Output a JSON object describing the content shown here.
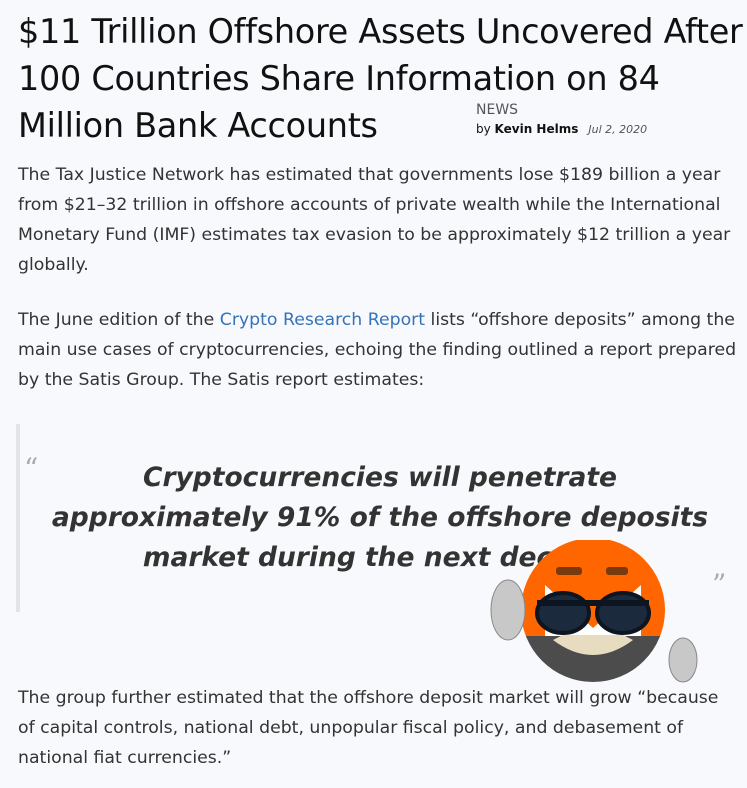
{
  "article": {
    "title": "$11 Trillion Offshore Assets Uncovered After 100 Countries Share Information on 84 Million Bank Accounts",
    "category": "NEWS",
    "by": "by",
    "author": "Kevin Helms",
    "date": "Jul 2, 2020",
    "p1": "The Tax Justice Network has estimated that governments lose $189 billion a year from $21–32 trillion in offshore accounts of private wealth while the International Monetary Fund (IMF) estimates tax evasion to be approximately $12 trillion a year globally.",
    "p2_before": "The June edition of the ",
    "p2_link": "Crypto Research Report",
    "p2_after": " lists “offshore deposits” among the main use cases of cryptocurrencies, echoing the finding outlined a report prepared by the Satis Group. The Satis report estimates:",
    "quote_open": "“",
    "quote": "Cryptocurrencies will penetrate approximately 91% of the offshore deposits market during the next decade.",
    "quote_close": "”",
    "p3": "The group further estimated that the offshore deposit market will grow “because of capital controls, national debt, unpopular fiscal policy, and debasement of national fiat currencies.”"
  },
  "colors": {
    "link": "#3573b9",
    "monero_orange": "#ff6600",
    "monero_gray": "#4c4c4c"
  }
}
